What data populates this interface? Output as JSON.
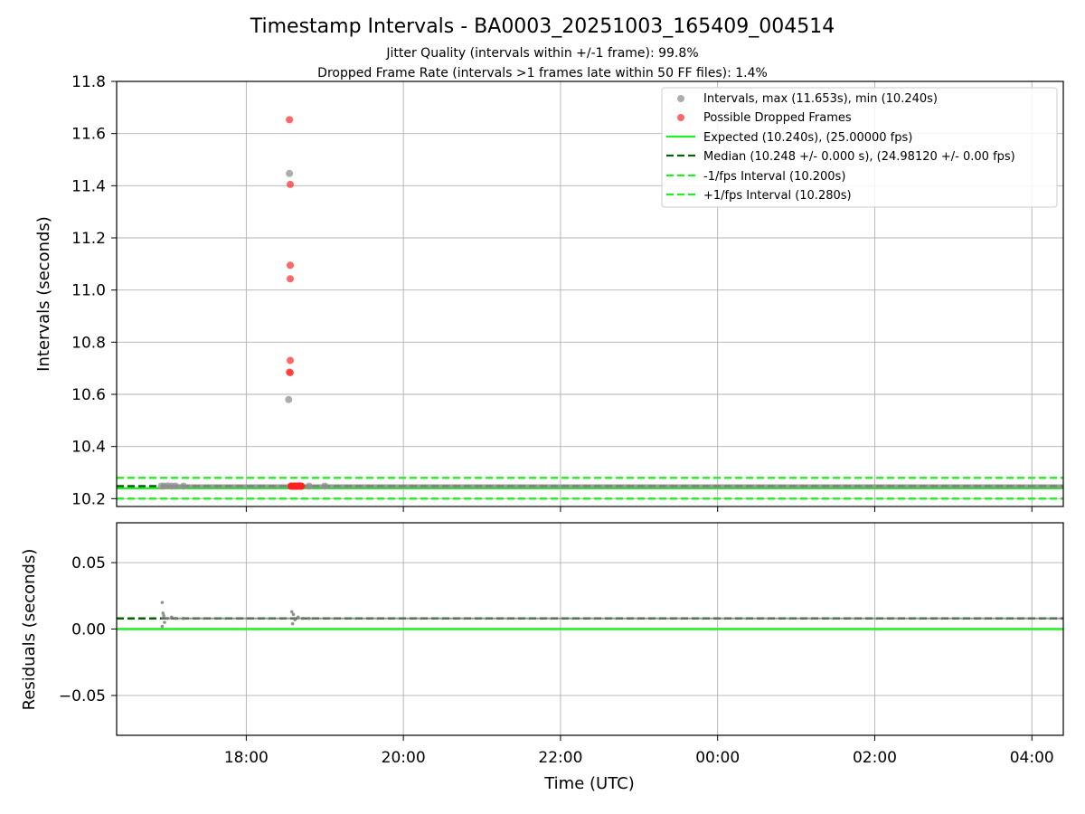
{
  "chart_data": [
    {
      "type": "scatter",
      "title": "Timestamp Intervals - BA0003_20251003_165409_004514",
      "subtitle_lines": [
        "Jitter Quality (intervals within +/-1 frame): 99.8%",
        "Dropped Frame Rate (intervals >1 frames late within 50 FF files): 1.4%"
      ],
      "xlabel": "",
      "ylabel": "Intervals (seconds)",
      "xlim_hours": [
        16.35,
        28.4
      ],
      "ylim": [
        10.17,
        11.8
      ],
      "yticks": [
        10.2,
        10.4,
        10.6,
        10.8,
        11.0,
        11.2,
        11.4,
        11.6,
        11.8
      ],
      "yticklabels": [
        "10.2",
        "10.4",
        "10.6",
        "10.8",
        "11.0",
        "11.2",
        "11.4",
        "11.6",
        "11.8"
      ],
      "grid": true,
      "legend_position": "top-right",
      "legend": [
        "Intervals, max (11.653s), min (10.240s)",
        "Possible Dropped Frames",
        "Expected (10.240s), (25.00000 fps)",
        "Median (10.248 +/- 0.000 s), (24.98120 +/- 0.00 fps)",
        "-1/fps Interval (10.200s)",
        "+1/fps Interval (10.280s)"
      ],
      "reference_lines": {
        "expected": 10.24,
        "median": 10.248,
        "minus_fps": 10.2,
        "plus_fps": 10.28
      },
      "series": [
        {
          "name": "Intervals",
          "color": "#999999",
          "points": [
            {
              "x": 16.92,
              "y": 10.248
            },
            {
              "x": 16.95,
              "y": 10.248
            },
            {
              "x": 17.0,
              "y": 10.249
            },
            {
              "x": 17.05,
              "y": 10.248
            },
            {
              "x": 17.1,
              "y": 10.248
            },
            {
              "x": 17.2,
              "y": 10.248
            },
            {
              "x": 18.54,
              "y": 10.58
            },
            {
              "x": 18.55,
              "y": 11.447
            },
            {
              "x": 18.6,
              "y": 10.248
            },
            {
              "x": 18.65,
              "y": 10.248
            },
            {
              "x": 18.7,
              "y": 10.248
            },
            {
              "x": 18.8,
              "y": 10.248
            },
            {
              "x": 19.0,
              "y": 10.248
            }
          ]
        },
        {
          "name": "Possible Dropped Frames",
          "color": "#ff3333",
          "points": [
            {
              "x": 18.55,
              "y": 11.653
            },
            {
              "x": 18.56,
              "y": 11.405
            },
            {
              "x": 18.56,
              "y": 11.095
            },
            {
              "x": 18.56,
              "y": 11.043
            },
            {
              "x": 18.56,
              "y": 10.73
            },
            {
              "x": 18.55,
              "y": 10.685
            },
            {
              "x": 18.56,
              "y": 10.683
            },
            {
              "x": 18.58,
              "y": 10.248
            },
            {
              "x": 18.6,
              "y": 10.248
            },
            {
              "x": 18.62,
              "y": 10.248
            },
            {
              "x": 18.64,
              "y": 10.248
            },
            {
              "x": 18.66,
              "y": 10.248
            },
            {
              "x": 18.68,
              "y": 10.249
            }
          ]
        }
      ]
    },
    {
      "type": "scatter",
      "title": "",
      "xlabel": "Time (UTC)",
      "ylabel": "Residuals (seconds)",
      "xlim_hours": [
        16.35,
        28.4
      ],
      "ylim": [
        -0.08,
        0.08
      ],
      "yticks": [
        -0.05,
        0.0,
        0.05
      ],
      "yticklabels": [
        "−0.05",
        "0.00",
        "0.05"
      ],
      "xticks_hours": [
        18,
        20,
        22,
        24,
        26,
        28
      ],
      "xticklabels": [
        "18:00",
        "20:00",
        "22:00",
        "00:00",
        "02:00",
        "04:00"
      ],
      "grid": true,
      "reference_lines": {
        "expected": 0.0,
        "median": 0.008
      },
      "series": [
        {
          "name": "Residuals",
          "color": "#777777",
          "points": [
            {
              "x": 16.93,
              "y": 0.02
            },
            {
              "x": 16.94,
              "y": 0.012
            },
            {
              "x": 16.95,
              "y": 0.01
            },
            {
              "x": 16.93,
              "y": 0.002
            },
            {
              "x": 16.96,
              "y": 0.005
            },
            {
              "x": 17.0,
              "y": 0.008
            },
            {
              "x": 17.05,
              "y": 0.009
            },
            {
              "x": 17.1,
              "y": 0.008
            },
            {
              "x": 17.2,
              "y": 0.008
            },
            {
              "x": 18.58,
              "y": 0.013
            },
            {
              "x": 18.59,
              "y": 0.004
            },
            {
              "x": 18.6,
              "y": 0.011
            },
            {
              "x": 18.62,
              "y": 0.007
            },
            {
              "x": 18.66,
              "y": 0.009
            },
            {
              "x": 18.72,
              "y": 0.008
            },
            {
              "x": 18.8,
              "y": 0.008
            }
          ]
        }
      ]
    }
  ]
}
